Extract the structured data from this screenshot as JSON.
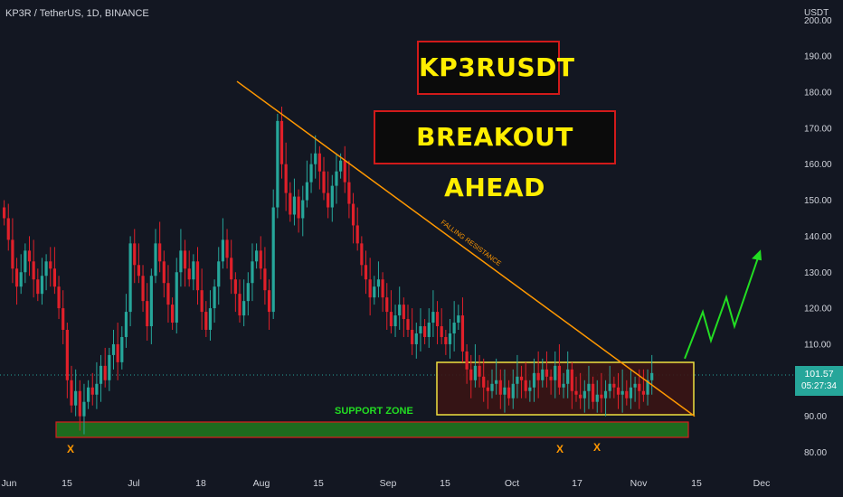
{
  "header": {
    "symbol": "KP3R / TetherUS, 1D, BINANCE",
    "currency": "USDT"
  },
  "price_tag": {
    "price": "101.57",
    "countdown": "05:27:34"
  },
  "titles": {
    "ticker": "KP3RUSDT",
    "headline": "BREAKOUT AHEAD"
  },
  "annotations": {
    "resistance_label": "FALLING RESISTANCE",
    "support_label": "SUPPORT ZONE",
    "bounce_marker": "X"
  },
  "colors": {
    "background": "#131722",
    "up": "#26a69a",
    "down": "#e0202a",
    "resistance_line": "#ff9800",
    "support_zone": "#1e6b1e",
    "range_box": "#f0e040",
    "projection": "#22dd22",
    "title_text": "#ffee00",
    "title_border": "#d11a1a"
  },
  "chart_data": {
    "type": "candlestick",
    "title": "KP3R / TetherUS, 1D, BINANCE",
    "ylabel": "USDT",
    "ylim": [
      76,
      207
    ],
    "y_ticks": [
      80,
      90,
      100,
      110,
      120,
      130,
      140,
      150,
      160,
      170,
      180,
      190,
      200
    ],
    "x_ticks": [
      "Jun",
      "15",
      "Jul",
      "18",
      "Aug",
      "15",
      "Sep",
      "15",
      "Oct",
      "17",
      "Nov",
      "15",
      "Dec"
    ],
    "grid": false,
    "last_price": 101.57,
    "candle_closes": [
      145,
      139,
      131,
      126,
      130,
      136,
      133,
      128,
      124,
      129,
      133,
      131,
      126,
      120,
      114,
      100,
      93,
      97,
      90,
      94,
      98,
      96,
      99,
      104,
      100,
      107,
      110,
      105,
      112,
      119,
      138,
      132,
      129,
      122,
      115,
      129,
      138,
      133,
      127,
      121,
      116,
      130,
      136,
      131,
      128,
      133,
      125,
      119,
      114,
      120,
      126,
      133,
      139,
      134,
      128,
      124,
      118,
      122,
      127,
      133,
      136,
      131,
      125,
      119,
      148,
      172,
      160,
      152,
      146,
      151,
      145,
      150,
      155,
      160,
      163,
      158,
      152,
      148,
      154,
      158,
      161,
      155,
      149,
      143,
      138,
      132,
      128,
      123,
      126,
      128,
      123,
      119,
      115,
      118,
      121,
      117,
      114,
      110,
      113,
      115,
      112,
      116,
      119,
      115,
      112,
      110,
      113,
      116,
      118,
      108,
      103,
      100,
      104,
      101,
      98,
      97,
      99,
      100,
      96,
      98,
      95,
      99,
      101,
      100,
      97,
      98,
      102,
      100,
      103,
      101,
      100,
      104,
      98,
      99,
      103,
      97,
      96,
      95,
      97,
      99,
      94,
      96,
      95,
      97,
      99,
      98,
      96,
      97,
      95,
      98,
      99,
      97,
      96,
      100,
      102
    ],
    "resistance_line": {
      "from": {
        "date": "Jul 26",
        "price": 183
      },
      "to": {
        "date": "Nov 13",
        "price": 90
      }
    },
    "support_zone": {
      "low": 85,
      "high": 89
    },
    "range_box": {
      "low": 90,
      "high": 105
    },
    "projection_path": [
      106,
      119,
      111,
      123,
      115,
      134
    ]
  }
}
